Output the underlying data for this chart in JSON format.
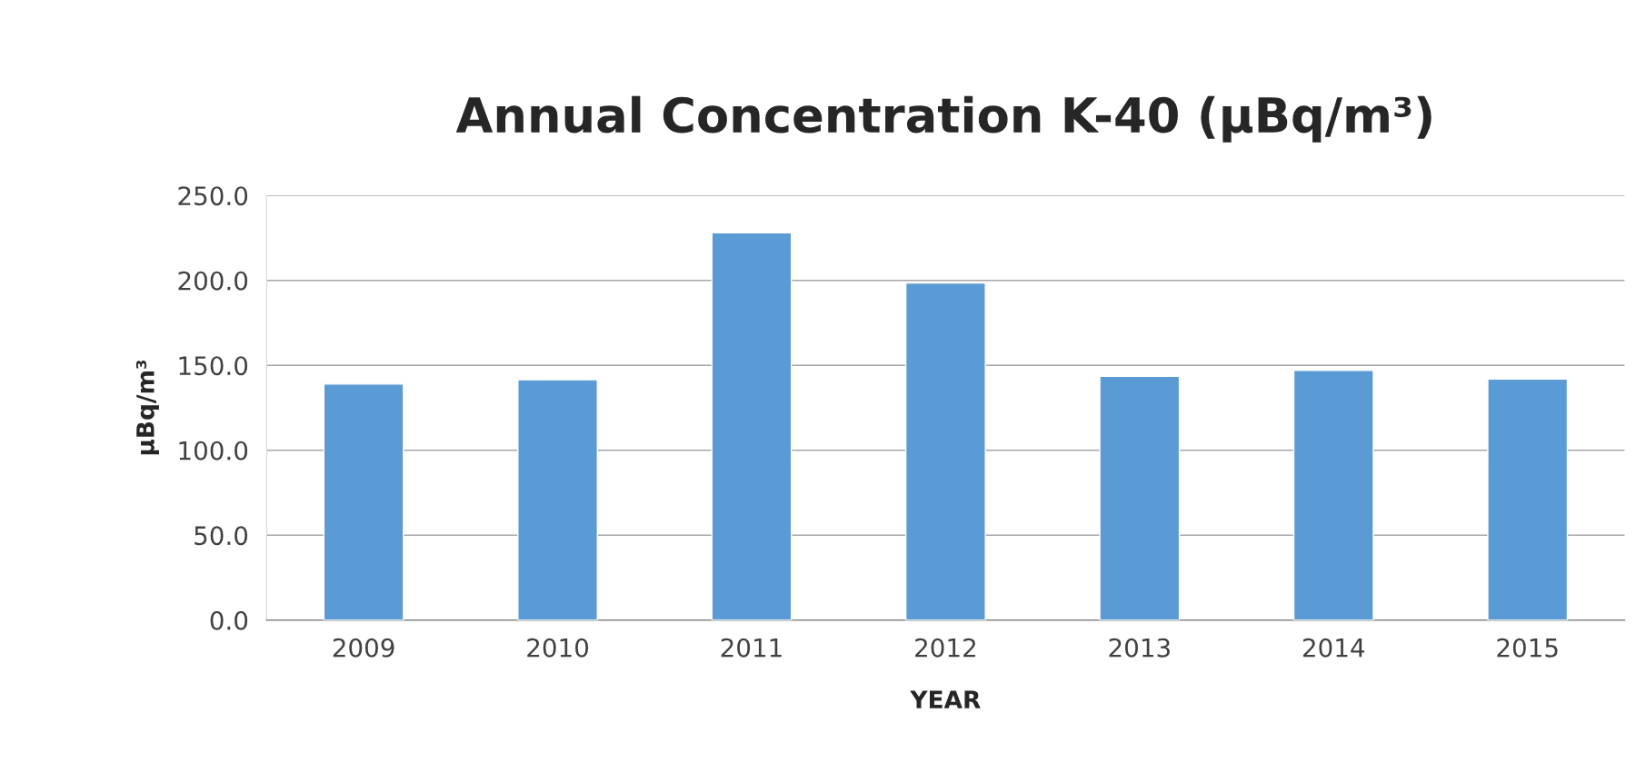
{
  "chart_data": {
    "type": "bar",
    "title": "Annual Concentration K-40 (µBq/m³)",
    "xlabel": "YEAR",
    "ylabel": "µBq/m³",
    "categories": [
      "2009",
      "2010",
      "2011",
      "2012",
      "2013",
      "2014",
      "2015"
    ],
    "values": [
      139,
      141.5,
      228,
      198.5,
      143.5,
      147,
      142
    ],
    "color": "#5b9bd5",
    "ylim": [
      0,
      250
    ],
    "yticks": [
      {
        "value": 0,
        "label": "0.0"
      },
      {
        "value": 50,
        "label": "50.0"
      },
      {
        "value": 100,
        "label": "100.0"
      },
      {
        "value": 150,
        "label": "150.0"
      },
      {
        "value": 200,
        "label": "200.0"
      },
      {
        "value": 250,
        "label": "250.0"
      }
    ],
    "grid": "y",
    "legend": false
  }
}
